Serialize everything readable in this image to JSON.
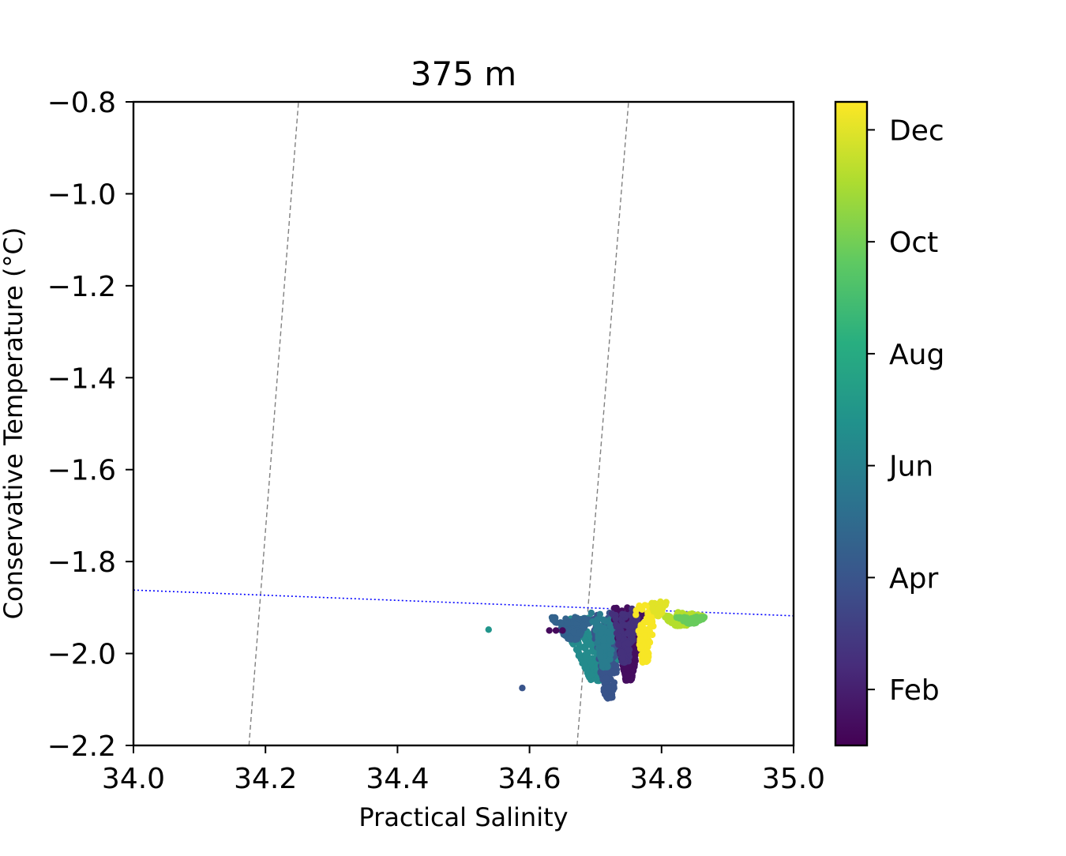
{
  "chart_data": {
    "type": "scatter",
    "title": "375 m",
    "xlabel": "Practical Salinity",
    "ylabel": "Conservative Temperature ($^\\circ$C)",
    "ylabel_display": "Conservative Temperature (°C)",
    "xlim": [
      34.0,
      35.0
    ],
    "ylim": [
      -2.2,
      -0.8
    ],
    "xticks": [
      34.0,
      34.2,
      34.4,
      34.6,
      34.8,
      35.0
    ],
    "xtick_labels": [
      "34.0",
      "34.2",
      "34.4",
      "34.6",
      "34.8",
      "35.0"
    ],
    "yticks": [
      -0.8,
      -1.0,
      -1.2,
      -1.4,
      -1.6,
      -1.8,
      -2.0,
      -2.2
    ],
    "ytick_labels": [
      "−0.8",
      "−1.0",
      "−1.2",
      "−1.4",
      "−1.6",
      "−1.8",
      "−2.0",
      "−2.2"
    ],
    "grid": false,
    "colorbar": {
      "colormap": "viridis",
      "tick_labels": [
        "Feb",
        "Apr",
        "Jun",
        "Aug",
        "Oct",
        "Dec"
      ],
      "tick_positions": [
        1,
        3,
        5,
        7,
        9,
        11
      ],
      "range": [
        0,
        11.5
      ]
    },
    "reference_lines": [
      {
        "style": "dashed",
        "color": "#808080",
        "points": [
          [
            34.175,
            -2.2
          ],
          [
            34.25,
            -0.8
          ]
        ]
      },
      {
        "style": "dashed",
        "color": "#808080",
        "points": [
          [
            34.672,
            -2.2
          ],
          [
            34.75,
            -0.8
          ]
        ]
      },
      {
        "style": "dotted",
        "color": "#0000ff",
        "points": [
          [
            34.0,
            -1.862
          ],
          [
            35.0,
            -1.918
          ]
        ]
      }
    ],
    "clusters": [
      {
        "month": 5.5,
        "count": 380,
        "x_range": [
          34.62,
          34.74
        ],
        "y_top": -1.92,
        "y_bottom": -2.06,
        "x_center": 34.705
      },
      {
        "month": 3.6,
        "count": 120,
        "x_range": [
          34.62,
          34.69
        ],
        "y_top": -1.92,
        "y_bottom": -1.97,
        "x_center": 34.665
      },
      {
        "month": 3.0,
        "count": 160,
        "x_range": [
          34.69,
          34.745
        ],
        "y_top": -1.91,
        "y_bottom": -2.1,
        "x_center": 34.72
      },
      {
        "month": 4.8,
        "count": 140,
        "x_range": [
          34.69,
          34.735
        ],
        "y_top": -1.91,
        "y_bottom": -2.03,
        "x_center": 34.715
      },
      {
        "month": 0.4,
        "count": 320,
        "x_range": [
          34.725,
          34.775
        ],
        "y_top": -1.9,
        "y_bottom": -2.06,
        "x_center": 34.75
      },
      {
        "month": 1.6,
        "count": 120,
        "x_range": [
          34.725,
          34.77
        ],
        "y_top": -1.9,
        "y_bottom": -2.02,
        "x_center": 34.745
      },
      {
        "month": 11.4,
        "count": 120,
        "x_range": [
          34.765,
          34.805
        ],
        "y_top": -1.89,
        "y_bottom": -2.02,
        "x_center": 34.775
      },
      {
        "month": 10.2,
        "count": 140,
        "x_range": [
          34.79,
          34.87
        ],
        "y_top": -1.91,
        "y_bottom": -1.94,
        "x_center": 34.83
      },
      {
        "month": 8.8,
        "count": 80,
        "x_range": [
          34.82,
          34.87
        ],
        "y_top": -1.92,
        "y_bottom": -1.935,
        "x_center": 34.845
      },
      {
        "month": 11.0,
        "count": 40,
        "x_range": [
          34.78,
          34.81
        ],
        "y_top": -1.885,
        "y_bottom": -1.92,
        "x_center": 34.795
      }
    ],
    "outliers": [
      {
        "x": 34.538,
        "y": -1.948,
        "month": 6.0
      },
      {
        "x": 34.589,
        "y": -2.075,
        "month": 3.0
      },
      {
        "x": 34.63,
        "y": -1.95,
        "month": 0.3
      },
      {
        "x": 34.64,
        "y": -1.95,
        "month": 0.3
      },
      {
        "x": 34.65,
        "y": -1.95,
        "month": 0.3
      }
    ]
  }
}
